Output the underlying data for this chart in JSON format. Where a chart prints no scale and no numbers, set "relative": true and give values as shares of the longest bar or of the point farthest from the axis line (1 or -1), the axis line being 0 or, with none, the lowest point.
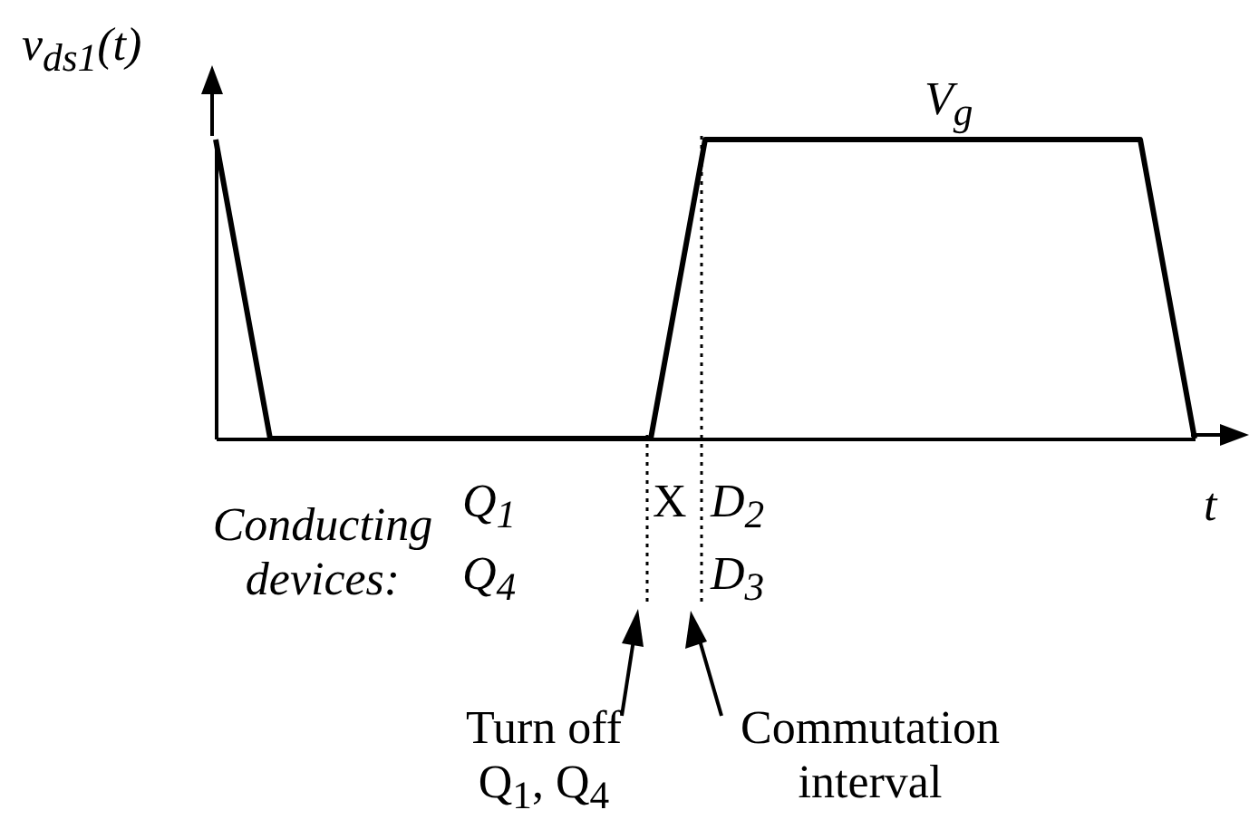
{
  "chart_data": {
    "type": "line",
    "relative": true,
    "tick_labels": false,
    "ylabel": "v$_{ds1}$(t)",
    "xlabel": "t",
    "categories": [
      null,
      null,
      null,
      null,
      null,
      null,
      null,
      null,
      null,
      null,
      null,
      null,
      null,
      null,
      null,
      null,
      null,
      null,
      null
    ],
    "values": [
      1,
      0,
      0,
      0,
      0,
      0,
      0,
      0,
      0,
      1,
      1,
      1,
      1,
      1,
      1,
      1,
      1,
      1,
      0
    ],
    "color": "#000000",
    "annotations": [
      "V$_{g}$",
      "Conducting devices:",
      "Q$_{1}$",
      "Q$_{4}$",
      "X",
      "D$_{2}$",
      "D$_{3}$",
      "Turn off Q$_{1}$, Q$_{4}$",
      "Commutation interval"
    ]
  }
}
